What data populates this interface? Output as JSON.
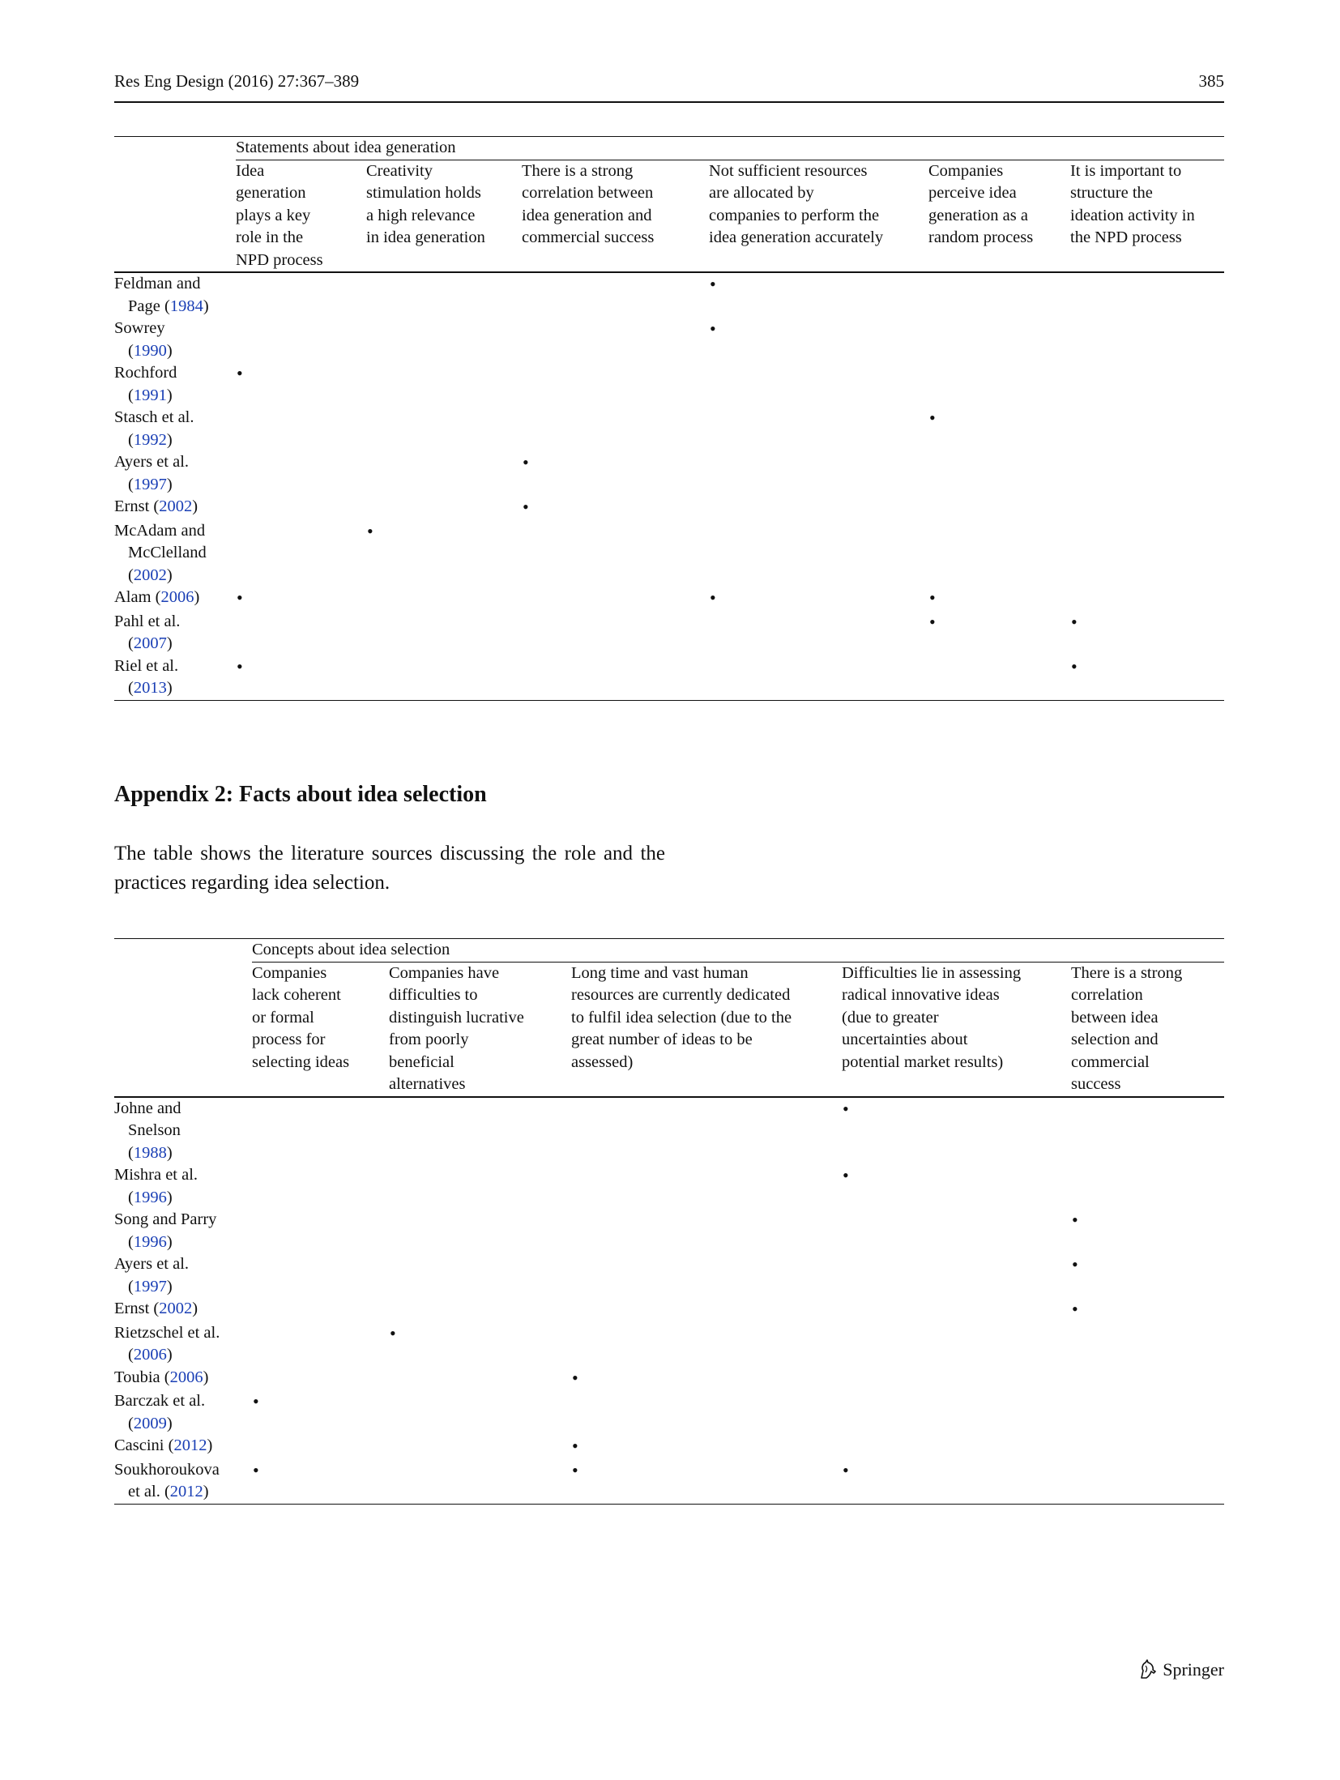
{
  "header": {
    "journal": "Res Eng Design (2016) 27:367–389",
    "page_number": "385"
  },
  "table1": {
    "group_label": "Statements about idea generation",
    "columns": [
      [
        "Idea",
        "generation",
        "plays a key",
        "role in the",
        "NPD process"
      ],
      [
        "Creativity",
        "stimulation holds",
        "a high relevance",
        "in idea generation"
      ],
      [
        "There is a strong",
        "correlation between",
        "idea generation and",
        "commercial success"
      ],
      [
        "Not sufficient resources",
        "are allocated by",
        "companies to perform the",
        "idea generation accurately"
      ],
      [
        "Companies",
        "perceive idea",
        "generation as a",
        "random process"
      ],
      [
        "It is important to",
        "structure the",
        "ideation activity in",
        "the NPD process"
      ]
    ],
    "rows": [
      {
        "author": [
          "Feldman and",
          "Page"
        ],
        "year": "1984",
        "marks": [
          false,
          false,
          false,
          true,
          false,
          false
        ]
      },
      {
        "author": [
          "Sowrey"
        ],
        "year": "1990",
        "marks": [
          false,
          false,
          false,
          true,
          false,
          false
        ]
      },
      {
        "author": [
          "Rochford"
        ],
        "year": "1991",
        "marks": [
          true,
          false,
          false,
          false,
          false,
          false
        ]
      },
      {
        "author": [
          "Stasch et al."
        ],
        "year": "1992",
        "marks": [
          false,
          false,
          false,
          false,
          true,
          false
        ]
      },
      {
        "author": [
          "Ayers et al."
        ],
        "year": "1997",
        "marks": [
          false,
          false,
          true,
          false,
          false,
          false
        ]
      },
      {
        "author": [
          "Ernst"
        ],
        "year": "2002",
        "inline": true,
        "marks": [
          false,
          false,
          true,
          false,
          false,
          false
        ]
      },
      {
        "author": [
          "McAdam and",
          "McClelland"
        ],
        "year": "2002",
        "marks": [
          false,
          true,
          false,
          false,
          false,
          false
        ]
      },
      {
        "author": [
          "Alam"
        ],
        "year": "2006",
        "inline": true,
        "marks": [
          true,
          false,
          false,
          true,
          true,
          false
        ]
      },
      {
        "author": [
          "Pahl et al."
        ],
        "year": "2007",
        "marks": [
          false,
          false,
          false,
          false,
          true,
          true
        ]
      },
      {
        "author": [
          "Riel et al."
        ],
        "year": "2013",
        "marks": [
          true,
          false,
          false,
          false,
          false,
          true
        ]
      }
    ]
  },
  "appendix2": {
    "title": "Appendix 2: Facts about idea selection",
    "intro": "The table shows the literature sources discussing the role and the practices regarding idea selection."
  },
  "table2": {
    "group_label": "Concepts about idea selection",
    "columns": [
      [
        "Companies",
        "lack coherent",
        "or formal",
        "process for",
        "selecting ideas"
      ],
      [
        "Companies have",
        "difficulties to",
        "distinguish lucrative",
        "from poorly",
        "beneficial",
        "alternatives"
      ],
      [
        "Long time and vast human",
        "resources are currently dedicated",
        "to fulfil idea selection (due to the",
        "great number of ideas to be",
        "assessed)"
      ],
      [
        "Difficulties lie in assessing",
        "radical innovative ideas",
        "(due to greater",
        "uncertainties about",
        "potential market results)"
      ],
      [
        "There is a strong",
        "correlation",
        "between idea",
        "selection and",
        "commercial",
        "success"
      ]
    ],
    "rows": [
      {
        "author": [
          "Johne and",
          "Snelson"
        ],
        "year": "1988",
        "year_own_line": true,
        "marks": [
          false,
          false,
          false,
          true,
          false
        ]
      },
      {
        "author": [
          "Mishra et al."
        ],
        "year": "1996",
        "marks": [
          false,
          false,
          false,
          true,
          false
        ]
      },
      {
        "author": [
          "Song and Parry"
        ],
        "year": "1996",
        "marks": [
          false,
          false,
          false,
          false,
          true
        ]
      },
      {
        "author": [
          "Ayers et al."
        ],
        "year": "1997",
        "marks": [
          false,
          false,
          false,
          false,
          true
        ]
      },
      {
        "author": [
          "Ernst"
        ],
        "year": "2002",
        "inline": true,
        "marks": [
          false,
          false,
          false,
          false,
          true
        ]
      },
      {
        "author": [
          "Rietzschel et al."
        ],
        "year": "2006",
        "marks": [
          false,
          true,
          false,
          false,
          false
        ]
      },
      {
        "author": [
          "Toubia"
        ],
        "year": "2006",
        "inline": true,
        "marks": [
          false,
          false,
          true,
          false,
          false
        ]
      },
      {
        "author": [
          "Barczak et al."
        ],
        "year": "2009",
        "marks": [
          true,
          false,
          false,
          false,
          false
        ]
      },
      {
        "author": [
          "Cascini"
        ],
        "year": "2012",
        "inline": true,
        "marks": [
          false,
          false,
          true,
          false,
          false
        ]
      },
      {
        "author": [
          "Soukhoroukova",
          "et al."
        ],
        "year": "2012",
        "marks": [
          true,
          false,
          true,
          true,
          false
        ]
      }
    ]
  },
  "footer": {
    "publisher": "Springer",
    "logo_icon": "springer-horse-icon"
  }
}
